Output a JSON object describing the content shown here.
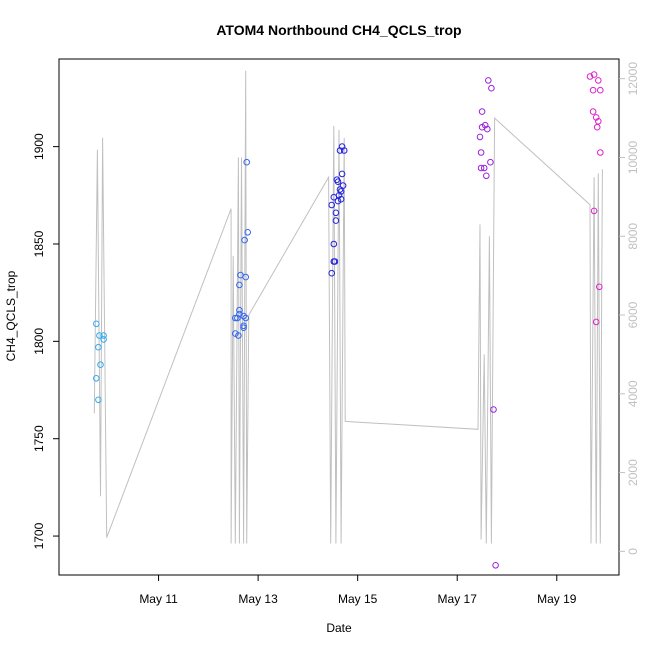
{
  "chart_data": {
    "type": "scatter",
    "title": "ATOM4 Northbound CH4_QCLS_trop",
    "xlabel": "Date",
    "ylabel": "CH4_QCLS_trop",
    "xlim": [
      "2018-05-09T00:00",
      "2018-05-20T06:00"
    ],
    "ylim": [
      1680,
      1945
    ],
    "y2lim": [
      -600,
      12500
    ],
    "x_ticks": [
      {
        "date": "2018-05-11T00:00",
        "label": "May 11"
      },
      {
        "date": "2018-05-13T00:00",
        "label": "May 13"
      },
      {
        "date": "2018-05-15T00:00",
        "label": "May 15"
      },
      {
        "date": "2018-05-17T00:00",
        "label": "May 17"
      },
      {
        "date": "2018-05-19T00:00",
        "label": "May 19"
      }
    ],
    "y_ticks": [
      "1700",
      "1750",
      "1800",
      "1850",
      "1900"
    ],
    "y2_ticks": [
      "0",
      "2000",
      "4000",
      "6000",
      "8000",
      "10000",
      "12000"
    ],
    "grid": false,
    "colors": {
      "line": "#c0c0c0",
      "axis": "#000000",
      "axis_right": "#c0c0c0"
    },
    "series": [
      {
        "color": "#33aaee",
        "points": [
          {
            "x": "2018-05-09T18:00",
            "y": 1809
          },
          {
            "x": "2018-05-09T18:00",
            "y": 1781
          },
          {
            "x": "2018-05-09T19:00",
            "y": 1770
          },
          {
            "x": "2018-05-09T19:00",
            "y": 1797
          },
          {
            "x": "2018-05-09T19:30",
            "y": 1803
          },
          {
            "x": "2018-05-09T20:00",
            "y": 1788
          },
          {
            "x": "2018-05-09T21:30",
            "y": 1803
          },
          {
            "x": "2018-05-09T21:30",
            "y": 1801
          }
        ]
      },
      {
        "color": "#3366ee",
        "points": [
          {
            "x": "2018-05-12T13:00",
            "y": 1812
          },
          {
            "x": "2018-05-12T13:00",
            "y": 1804
          },
          {
            "x": "2018-05-12T14:00",
            "y": 1812
          },
          {
            "x": "2018-05-12T14:30",
            "y": 1803
          },
          {
            "x": "2018-05-12T15:00",
            "y": 1814
          },
          {
            "x": "2018-05-12T15:00",
            "y": 1816
          },
          {
            "x": "2018-05-12T15:00",
            "y": 1829
          },
          {
            "x": "2018-05-12T15:30",
            "y": 1834
          },
          {
            "x": "2018-05-12T17:00",
            "y": 1813
          },
          {
            "x": "2018-05-12T17:00",
            "y": 1808
          },
          {
            "x": "2018-05-12T17:00",
            "y": 1807
          },
          {
            "x": "2018-05-12T17:30",
            "y": 1852
          },
          {
            "x": "2018-05-12T18:00",
            "y": 1812
          },
          {
            "x": "2018-05-12T18:00",
            "y": 1833
          },
          {
            "x": "2018-05-12T18:30",
            "y": 1892
          },
          {
            "x": "2018-05-12T19:00",
            "y": 1856
          }
        ]
      },
      {
        "color": "#2222dd",
        "points": [
          {
            "x": "2018-05-14T11:30",
            "y": 1870
          },
          {
            "x": "2018-05-14T11:30",
            "y": 1835
          },
          {
            "x": "2018-05-14T12:30",
            "y": 1874
          },
          {
            "x": "2018-05-14T12:30",
            "y": 1841
          },
          {
            "x": "2018-05-14T12:30",
            "y": 1850
          },
          {
            "x": "2018-05-14T13:00",
            "y": 1841
          },
          {
            "x": "2018-05-14T13:30",
            "y": 1866
          },
          {
            "x": "2018-05-14T13:30",
            "y": 1862
          },
          {
            "x": "2018-05-14T14:00",
            "y": 1883
          },
          {
            "x": "2018-05-14T14:30",
            "y": 1882
          },
          {
            "x": "2018-05-14T14:30",
            "y": 1872
          },
          {
            "x": "2018-05-14T15:00",
            "y": 1875
          },
          {
            "x": "2018-05-14T15:30",
            "y": 1878
          },
          {
            "x": "2018-05-14T15:30",
            "y": 1898
          },
          {
            "x": "2018-05-14T16:00",
            "y": 1873
          },
          {
            "x": "2018-05-14T16:00",
            "y": 1877
          },
          {
            "x": "2018-05-14T16:30",
            "y": 1886
          },
          {
            "x": "2018-05-14T16:30",
            "y": 1900
          },
          {
            "x": "2018-05-14T17:00",
            "y": 1880
          },
          {
            "x": "2018-05-14T17:30",
            "y": 1898
          }
        ]
      },
      {
        "color": "#9922dd",
        "points": [
          {
            "x": "2018-05-17T11:00",
            "y": 1905
          },
          {
            "x": "2018-05-17T11:30",
            "y": 1897
          },
          {
            "x": "2018-05-17T11:30",
            "y": 1889
          },
          {
            "x": "2018-05-17T12:00",
            "y": 1910
          },
          {
            "x": "2018-05-17T12:00",
            "y": 1918
          },
          {
            "x": "2018-05-17T13:00",
            "y": 1889
          },
          {
            "x": "2018-05-17T13:30",
            "y": 1911
          },
          {
            "x": "2018-05-17T14:00",
            "y": 1885
          },
          {
            "x": "2018-05-17T14:30",
            "y": 1909
          },
          {
            "x": "2018-05-17T15:00",
            "y": 1934
          },
          {
            "x": "2018-05-17T16:00",
            "y": 1892
          },
          {
            "x": "2018-05-17T16:30",
            "y": 1930
          },
          {
            "x": "2018-05-17T17:30",
            "y": 1765
          },
          {
            "x": "2018-05-17T18:30",
            "y": 1685
          }
        ]
      },
      {
        "color": "#dd22cc",
        "points": [
          {
            "x": "2018-05-19T16:00",
            "y": 1936
          },
          {
            "x": "2018-05-19T17:30",
            "y": 1918
          },
          {
            "x": "2018-05-19T17:30",
            "y": 1929
          },
          {
            "x": "2018-05-19T18:00",
            "y": 1867
          },
          {
            "x": "2018-05-19T18:00",
            "y": 1937
          },
          {
            "x": "2018-05-19T19:00",
            "y": 1915
          },
          {
            "x": "2018-05-19T19:00",
            "y": 1810
          },
          {
            "x": "2018-05-19T19:30",
            "y": 1910
          },
          {
            "x": "2018-05-19T20:00",
            "y": 1934
          },
          {
            "x": "2018-05-19T20:00",
            "y": 1913
          },
          {
            "x": "2018-05-19T20:30",
            "y": 1828
          },
          {
            "x": "2018-05-19T21:00",
            "y": 1929
          },
          {
            "x": "2018-05-19T21:00",
            "y": 1897
          }
        ]
      }
    ],
    "altitude_line": [
      {
        "x": "2018-05-09T17:00",
        "y2": 3500
      },
      {
        "x": "2018-05-09T18:30",
        "y2": 10200
      },
      {
        "x": "2018-05-09T20:00",
        "y2": 1400
      },
      {
        "x": "2018-05-09T21:00",
        "y2": 10500
      },
      {
        "x": "2018-05-09T23:00",
        "y2": 350
      },
      {
        "x": "2018-05-12T11:00",
        "y2": 8700
      },
      {
        "x": "2018-05-12T11:00",
        "y2": 200
      },
      {
        "x": "2018-05-12T12:00",
        "y2": 7500
      },
      {
        "x": "2018-05-12T13:00",
        "y2": 200
      },
      {
        "x": "2018-05-12T14:30",
        "y2": 10000
      },
      {
        "x": "2018-05-12T15:00",
        "y2": 200
      },
      {
        "x": "2018-05-12T16:00",
        "y2": 10000
      },
      {
        "x": "2018-05-12T17:00",
        "y2": 200
      },
      {
        "x": "2018-05-12T18:00",
        "y2": 12200
      },
      {
        "x": "2018-05-12T18:30",
        "y2": 200
      },
      {
        "x": "2018-05-12T19:30",
        "y2": 6000
      },
      {
        "x": "2018-05-14T10:00",
        "y2": 9500
      },
      {
        "x": "2018-05-14T11:00",
        "y2": 200
      },
      {
        "x": "2018-05-14T12:30",
        "y2": 10800
      },
      {
        "x": "2018-05-14T13:30",
        "y2": 200
      },
      {
        "x": "2018-05-14T15:00",
        "y2": 10700
      },
      {
        "x": "2018-05-14T16:00",
        "y2": 200
      },
      {
        "x": "2018-05-14T17:30",
        "y2": 10500
      },
      {
        "x": "2018-05-14T18:00",
        "y2": 3300
      },
      {
        "x": "2018-05-17T10:00",
        "y2": 3100
      },
      {
        "x": "2018-05-17T11:00",
        "y2": 8300
      },
      {
        "x": "2018-05-17T11:30",
        "y2": 300
      },
      {
        "x": "2018-05-17T13:00",
        "y2": 5000
      },
      {
        "x": "2018-05-17T14:00",
        "y2": 200
      },
      {
        "x": "2018-05-17T15:30",
        "y2": 8000
      },
      {
        "x": "2018-05-17T16:30",
        "y2": 200
      },
      {
        "x": "2018-05-17T18:00",
        "y2": 11000
      },
      {
        "x": "2018-05-19T16:00",
        "y2": 8800
      },
      {
        "x": "2018-05-19T16:30",
        "y2": 200
      },
      {
        "x": "2018-05-19T18:00",
        "y2": 9500
      },
      {
        "x": "2018-05-19T19:00",
        "y2": 200
      },
      {
        "x": "2018-05-19T20:00",
        "y2": 9600
      },
      {
        "x": "2018-05-19T21:00",
        "y2": 200
      },
      {
        "x": "2018-05-19T22:00",
        "y2": 9700
      }
    ]
  }
}
